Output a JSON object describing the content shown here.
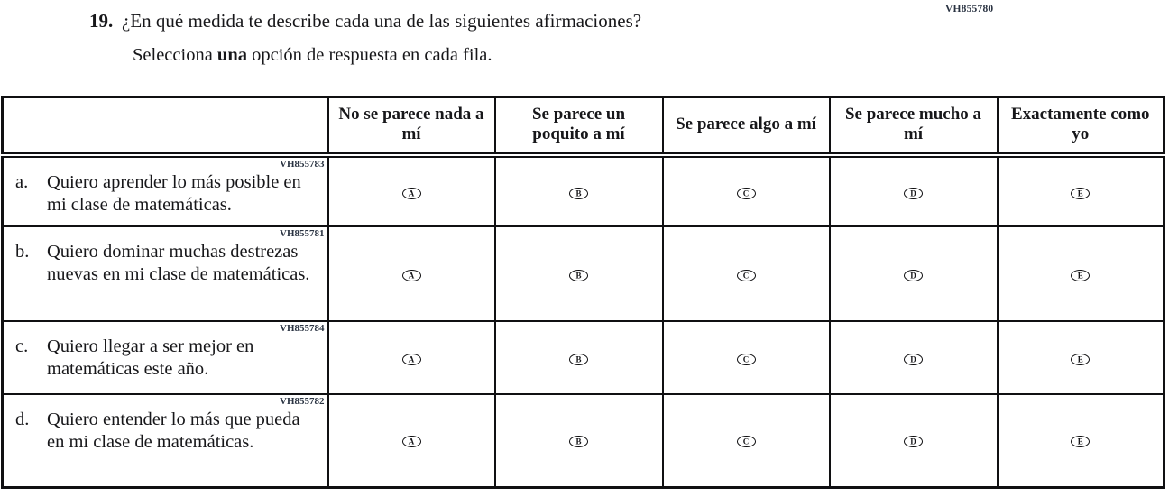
{
  "page": {
    "item_code": "VH855780",
    "question_number": "19.",
    "question_text": "¿En qué medida te describe cada una de las siguientes afirmaciones?",
    "instruction_prefix": "Selecciona ",
    "instruction_bold": "una",
    "instruction_suffix": " opción de respuesta en cada fila."
  },
  "table": {
    "columns": [
      "No se parece nada a mí",
      "Se parece un poquito a mí",
      "Se parece algo a mí",
      "Se parece mucho a mí",
      "Exactamente como yo"
    ],
    "options": [
      "A",
      "B",
      "C",
      "D",
      "E"
    ],
    "rows": [
      {
        "code": "VH855783",
        "letter": "a.",
        "text": "Quiero aprender lo más posible en mi clase de matemáticas."
      },
      {
        "code": "VH855781",
        "letter": "b.",
        "text": "Quiero dominar muchas destrezas nuevas en mi clase de matemáticas."
      },
      {
        "code": "VH855784",
        "letter": "c.",
        "text": "Quiero llegar a ser mejor en matemáticas este año."
      },
      {
        "code": "VH855782",
        "letter": "d.",
        "text": "Quiero entender lo más que pueda en mi clase de matemáticas."
      }
    ]
  },
  "colors": {
    "text": "#17171a",
    "border": "#101012",
    "code": "#2a3342",
    "background": "#ffffff"
  }
}
